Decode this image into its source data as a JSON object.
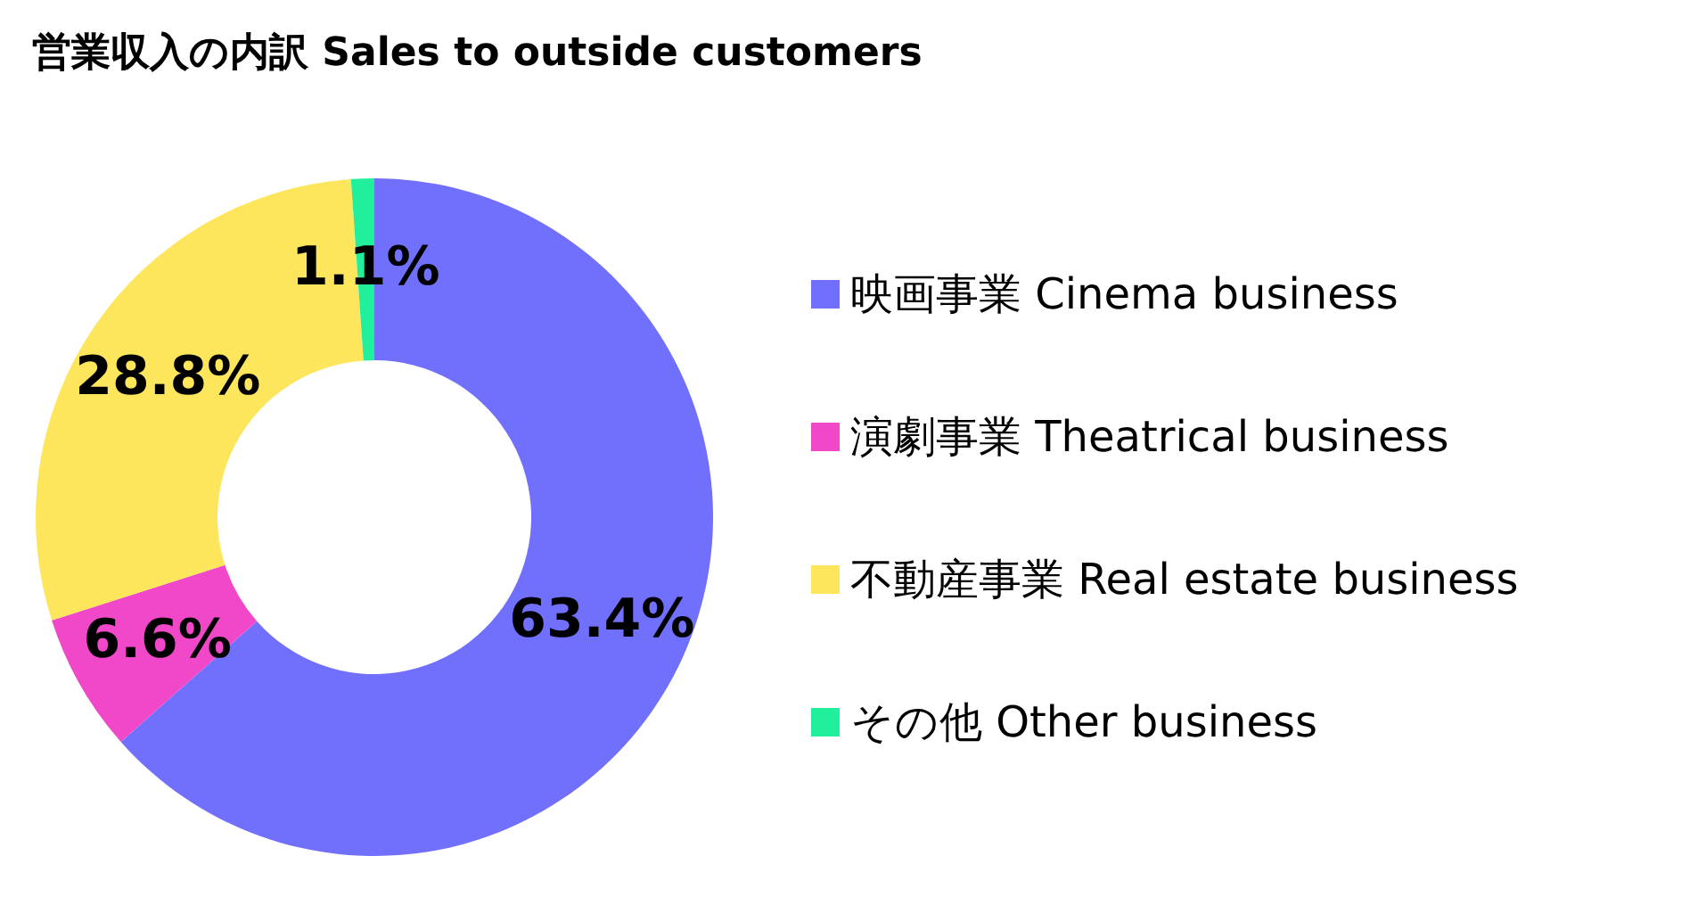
{
  "chart_data": {
    "type": "donut",
    "title": "営業収入の内訳 Sales to outside customers",
    "categories": [
      "映画事業 Cinema business",
      "演劇事業 Theatrical business",
      "不動産事業 Real estate business",
      "その他 Other business"
    ],
    "values": [
      63.4,
      6.6,
      28.8,
      1.1
    ],
    "colors": [
      "#7070fc",
      "#f048c8",
      "#fde65c",
      "#20f09c"
    ],
    "value_labels": [
      "63.4%",
      "6.6%",
      "28.8%",
      "1.1%"
    ],
    "legend": "right"
  }
}
